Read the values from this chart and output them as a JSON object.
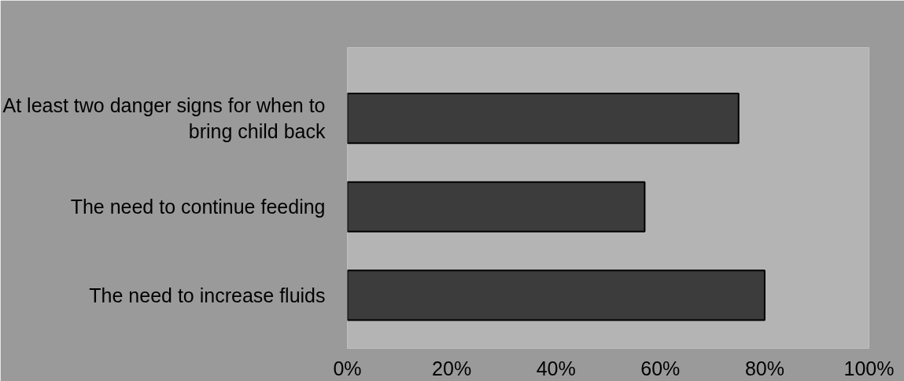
{
  "chart_data": {
    "type": "bar",
    "orientation": "horizontal",
    "categories": [
      "At least two danger signs for when to\nbring child back",
      "The need to continue feeding",
      "The need to increase fluids"
    ],
    "values": [
      75,
      57,
      80
    ],
    "color": "#3c3c3c",
    "xlim": [
      0,
      100
    ],
    "xticks": [
      {
        "value": 0,
        "label": "0%"
      },
      {
        "value": 20,
        "label": "20%"
      },
      {
        "value": 40,
        "label": "40%"
      },
      {
        "value": 60,
        "label": "60%"
      },
      {
        "value": 80,
        "label": "80%"
      },
      {
        "value": 100,
        "label": "100%"
      }
    ],
    "grid": false
  }
}
